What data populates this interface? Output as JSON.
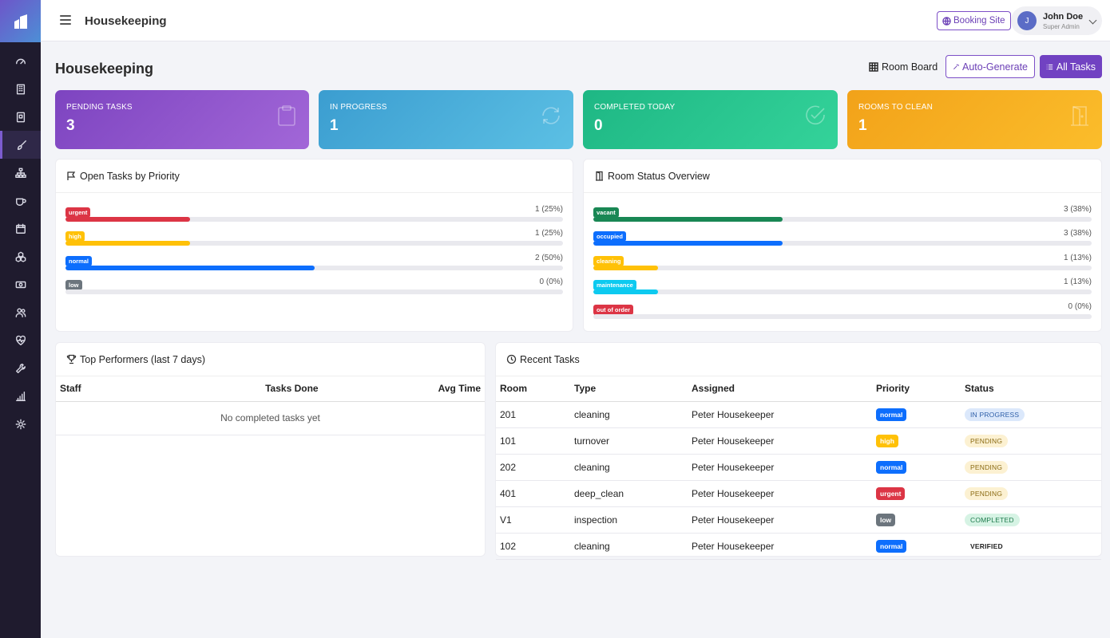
{
  "topbar": {
    "title": "Housekeeping",
    "booking_label": "Booking Site"
  },
  "user": {
    "initial": "J",
    "name": "John Doe",
    "role": "Super Admin"
  },
  "page": {
    "title": "Housekeeping"
  },
  "actions": {
    "room_board": "Room Board",
    "auto_generate": "Auto-Generate",
    "all_tasks": "All Tasks"
  },
  "stats": [
    {
      "label": "PENDING TASKS",
      "value": "3",
      "icon": "clipboard-icon"
    },
    {
      "label": "IN PROGRESS",
      "value": "1",
      "icon": "refresh-icon"
    },
    {
      "label": "COMPLETED TODAY",
      "value": "0",
      "icon": "check-circle-icon"
    },
    {
      "label": "ROOMS TO CLEAN",
      "value": "1",
      "icon": "door-icon"
    }
  ],
  "priority_card": {
    "title": "Open Tasks by Priority",
    "rows": [
      {
        "label": "urgent",
        "text": "1 (25%)",
        "pct": 25,
        "color": "#dc3545"
      },
      {
        "label": "high",
        "text": "1 (25%)",
        "pct": 25,
        "color": "#ffc107"
      },
      {
        "label": "normal",
        "text": "2 (50%)",
        "pct": 50,
        "color": "#0d6efd"
      },
      {
        "label": "low",
        "text": "0 (0%)",
        "pct": 0,
        "color": "#6c757d"
      }
    ]
  },
  "room_card": {
    "title": "Room Status Overview",
    "rows": [
      {
        "label": "vacant",
        "text": "3 (38%)",
        "pct": 38,
        "color": "#198754"
      },
      {
        "label": "occupied",
        "text": "3 (38%)",
        "pct": 38,
        "color": "#0d6efd"
      },
      {
        "label": "cleaning",
        "text": "1 (13%)",
        "pct": 13,
        "color": "#ffc107"
      },
      {
        "label": "maintenance",
        "text": "1 (13%)",
        "pct": 13,
        "color": "#0dcaf0"
      },
      {
        "label": "out of order",
        "text": "0 (0%)",
        "pct": 0,
        "color": "#dc3545"
      }
    ]
  },
  "performers": {
    "title": "Top Performers (last 7 days)",
    "headers": [
      "Staff",
      "Tasks Done",
      "Avg Time"
    ],
    "empty": "No completed tasks yet"
  },
  "recent": {
    "title": "Recent Tasks",
    "headers": [
      "Room",
      "Type",
      "Assigned",
      "Priority",
      "Status"
    ],
    "rows": [
      {
        "room": "201",
        "type": "cleaning",
        "assigned": "Peter Housekeeper",
        "priority": "normal",
        "status": "IN PROGRESS"
      },
      {
        "room": "101",
        "type": "turnover",
        "assigned": "Peter Housekeeper",
        "priority": "high",
        "status": "PENDING"
      },
      {
        "room": "202",
        "type": "cleaning",
        "assigned": "Peter Housekeeper",
        "priority": "normal",
        "status": "PENDING"
      },
      {
        "room": "401",
        "type": "deep_clean",
        "assigned": "Peter Housekeeper",
        "priority": "urgent",
        "status": "PENDING"
      },
      {
        "room": "V1",
        "type": "inspection",
        "assigned": "Peter Housekeeper",
        "priority": "low",
        "status": "COMPLETED"
      },
      {
        "room": "102",
        "type": "cleaning",
        "assigned": "Peter Housekeeper",
        "priority": "normal",
        "status": "VERIFIED"
      }
    ]
  },
  "colors": {
    "priority": {
      "urgent": "#dc3545",
      "high": "#ffc107",
      "normal": "#0d6efd",
      "low": "#6c757d"
    },
    "status": {
      "IN PROGRESS": {
        "bg": "#dbe8fb",
        "fg": "#2f5fa8"
      },
      "PENDING": {
        "bg": "#fcf1d2",
        "fg": "#8a6a12"
      },
      "COMPLETED": {
        "bg": "#d6f3e4",
        "fg": "#1d7a4c"
      },
      "VERIFIED": {
        "bg": "transparent",
        "fg": "#222"
      }
    }
  }
}
